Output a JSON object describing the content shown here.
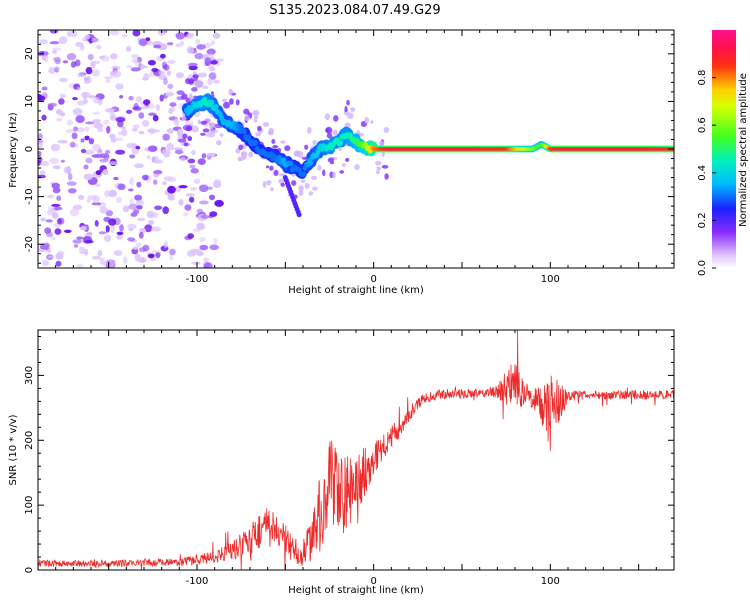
{
  "title": "S135.2023.084.07.49.G29",
  "colors": {
    "snr_line": "#ee2b2b",
    "spectrogram_low": "#d9b8ff",
    "spectrogram_mid": "#5a18e8",
    "spectrogram_track": "#e01212",
    "background": "#ffffff",
    "axes": "#000000"
  },
  "chart_data": [
    {
      "type": "heatmap",
      "name": "spectrogram",
      "xlabel": "Height of straight line (km)",
      "ylabel": "Frequency (Hz)",
      "xlim": [
        -190,
        170
      ],
      "ylim": [
        -25,
        25
      ],
      "xticks": [
        -100,
        0,
        100
      ],
      "yticks": [
        -20,
        -10,
        0,
        10,
        20
      ],
      "xtick_labels": [
        "-100",
        "0",
        "100"
      ],
      "ytick_labels": [
        "-20",
        "-10",
        "0",
        "10",
        "20"
      ],
      "colorbar": {
        "label": "Normalized spectral amplitude",
        "range": [
          0.0,
          1.0
        ],
        "ticks": [
          0.0,
          0.2,
          0.4,
          0.6,
          0.8
        ],
        "tick_labels": [
          "0.0",
          "0.2",
          "0.4",
          "0.6",
          "0.8"
        ],
        "colormap": "rainbow (white-violet-blue-cyan-green-yellow-red-magenta)"
      },
      "ridge": {
        "x": [
          -105,
          -100,
          -95,
          -90,
          -85,
          -80,
          -75,
          -70,
          -65,
          -60,
          -55,
          -50,
          -45,
          -40,
          -35,
          -30,
          -25,
          -20,
          -15,
          -10,
          -5,
          0,
          10,
          50,
          75,
          90,
          95,
          100,
          110,
          150,
          170
        ],
        "y": [
          8,
          9.5,
          10,
          9,
          6,
          5,
          4,
          2,
          0,
          -1,
          -2,
          -3,
          -4,
          -5,
          -2,
          0,
          0.5,
          1.5,
          3,
          1.5,
          0.5,
          0,
          0,
          0,
          0,
          0,
          1,
          0,
          0,
          0,
          0
        ],
        "amplitude": [
          0.35,
          0.4,
          0.45,
          0.4,
          0.35,
          0.35,
          0.3,
          0.3,
          0.3,
          0.3,
          0.3,
          0.35,
          0.3,
          0.3,
          0.35,
          0.4,
          0.45,
          0.45,
          0.45,
          0.5,
          0.6,
          0.8,
          0.9,
          0.9,
          0.85,
          0.6,
          0.5,
          0.85,
          0.9,
          0.9,
          0.85
        ]
      },
      "noise_region_x": [
        -190,
        -95
      ]
    },
    {
      "type": "line",
      "name": "snr",
      "xlabel": "Height of straight line (km)",
      "ylabel": "SNR (10 * v/v)",
      "xlim": [
        -190,
        170
      ],
      "ylim": [
        0,
        370
      ],
      "xticks": [
        -100,
        0,
        100
      ],
      "yticks": [
        0,
        100,
        200,
        300
      ],
      "xtick_labels": [
        "-100",
        "0",
        "100"
      ],
      "ytick_labels": [
        "0",
        "100",
        "200",
        "300"
      ],
      "series": [
        {
          "x": [
            -190,
            -150,
            -110,
            -90,
            -80,
            -70,
            -65,
            -60,
            -55,
            -50,
            -45,
            -40,
            -35,
            -30,
            -25,
            -20,
            -15,
            -10,
            -5,
            0,
            5,
            10,
            15,
            20,
            25,
            30,
            40,
            50,
            60,
            70,
            75,
            80,
            85,
            90,
            95,
            100,
            105,
            110,
            120,
            140,
            160,
            170
          ],
          "y": [
            10,
            10,
            12,
            20,
            30,
            45,
            60,
            70,
            55,
            45,
            30,
            25,
            50,
            90,
            130,
            110,
            120,
            130,
            155,
            170,
            190,
            205,
            220,
            240,
            258,
            265,
            272,
            272,
            272,
            275,
            282,
            288,
            270,
            265,
            255,
            240,
            260,
            268,
            270,
            270,
            270,
            270
          ],
          "noise_amplitude": [
            5,
            5,
            6,
            10,
            15,
            25,
            30,
            30,
            30,
            25,
            20,
            20,
            35,
            60,
            80,
            70,
            60,
            50,
            40,
            25,
            20,
            18,
            15,
            12,
            10,
            8,
            7,
            7,
            7,
            10,
            30,
            35,
            25,
            15,
            30,
            60,
            35,
            8,
            7,
            7,
            7,
            7
          ]
        }
      ]
    }
  ]
}
